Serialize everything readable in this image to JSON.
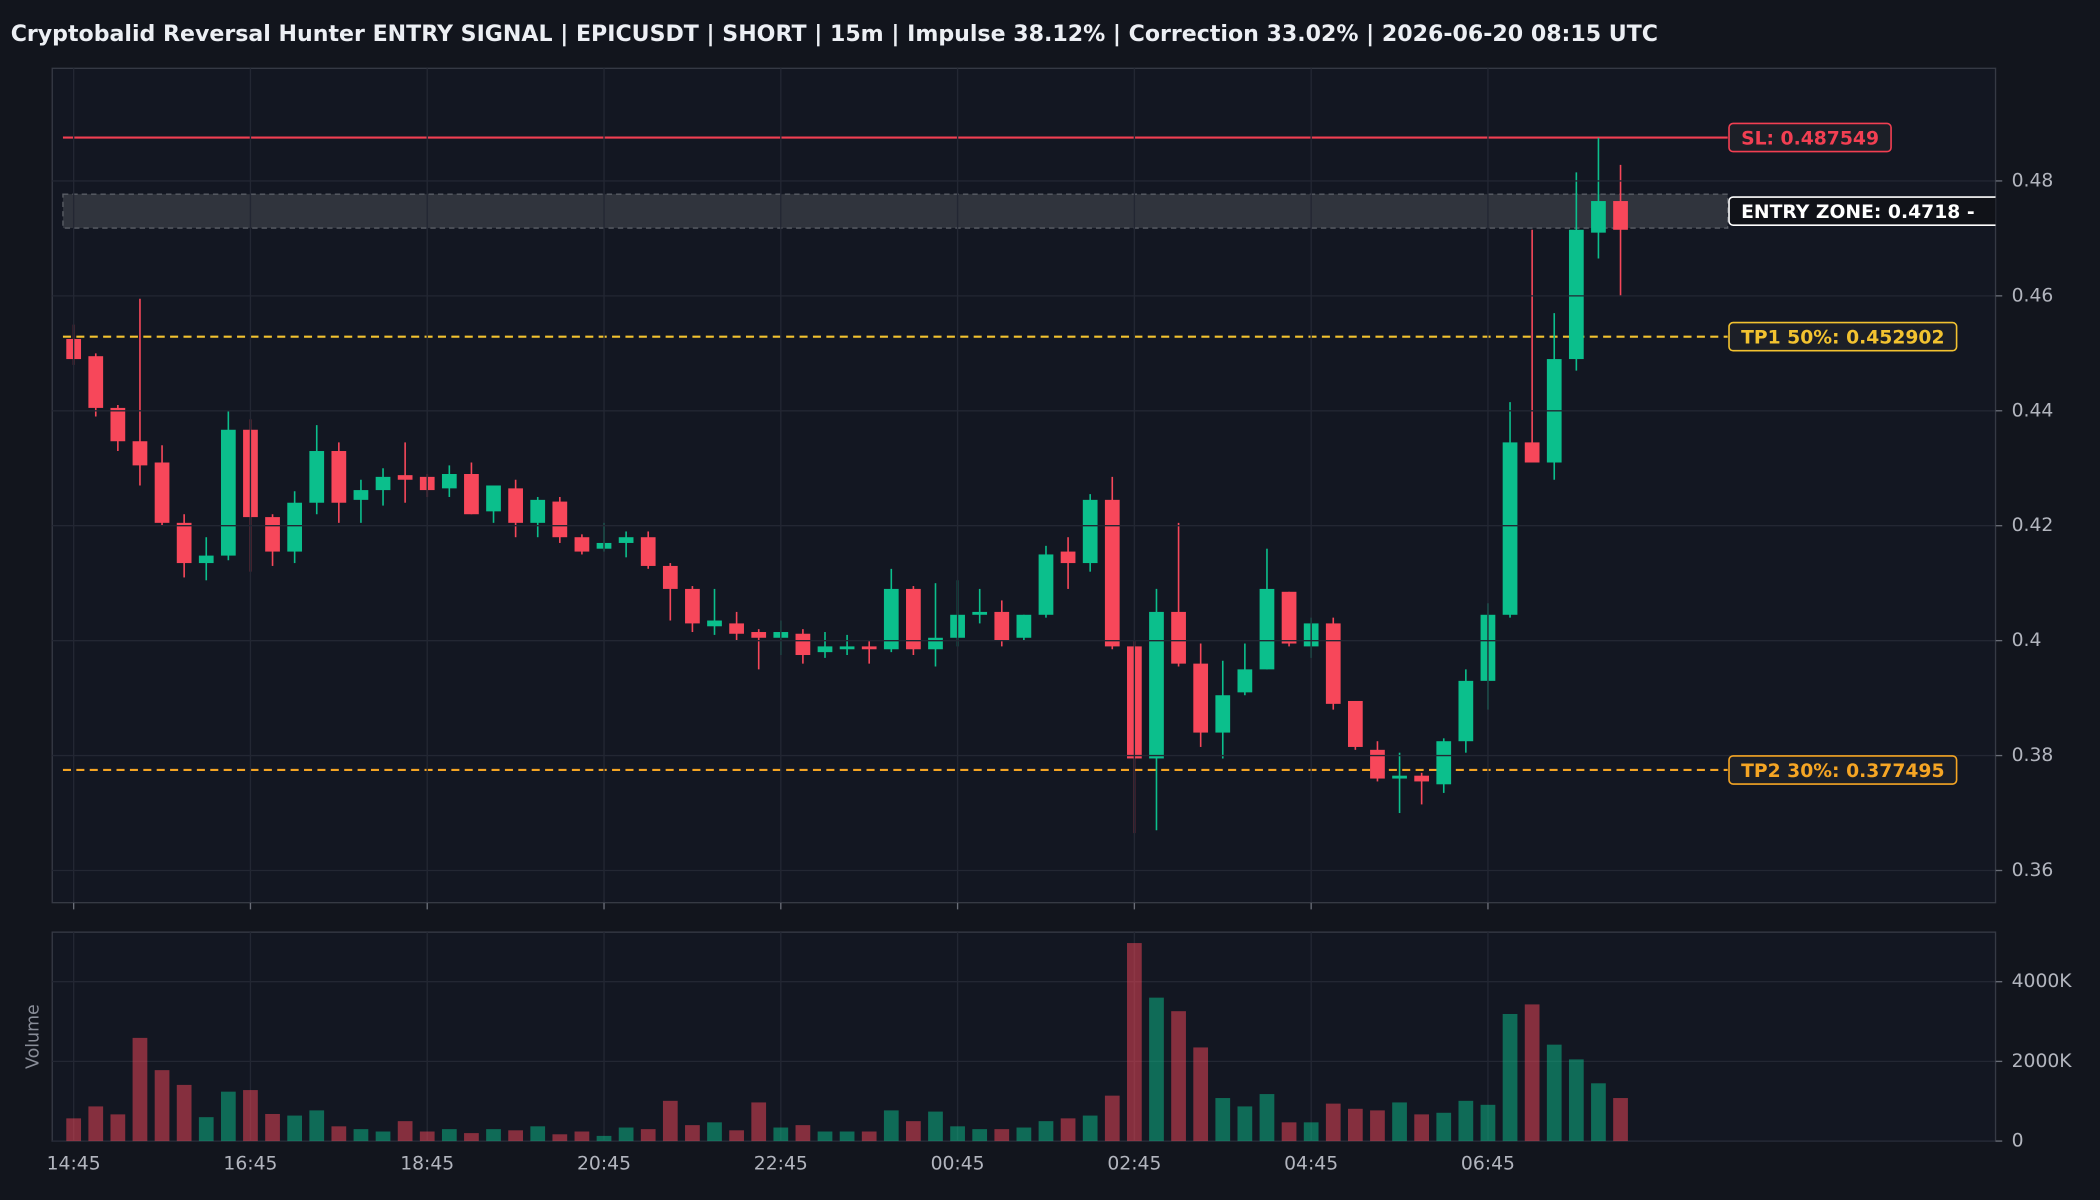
{
  "chart_data": {
    "type": "candlestick",
    "title": "Cryptobalid Reversal Hunter ENTRY SIGNAL | EPICUSDT | SHORT | 15m | Impulse 38.12% | Correction 33.02% | 2026-06-20 08:15 UTC",
    "categories": [
      "14:45",
      null,
      null,
      null,
      null,
      null,
      null,
      null,
      "16:45",
      null,
      null,
      null,
      null,
      null,
      null,
      null,
      "18:45",
      null,
      null,
      null,
      null,
      null,
      null,
      null,
      "20:45",
      null,
      null,
      null,
      null,
      null,
      null,
      null,
      "22:45",
      null,
      null,
      null,
      null,
      null,
      null,
      null,
      "00:45",
      null,
      null,
      null,
      null,
      null,
      null,
      null,
      "02:45",
      null,
      null,
      null,
      null,
      null,
      null,
      null,
      "04:45",
      null,
      null,
      null,
      null,
      null,
      null,
      null,
      "06:45",
      null,
      null,
      null,
      null,
      null,
      null
    ],
    "open": [
      0.4525,
      0.4495,
      0.4405,
      0.4347,
      0.431,
      0.4205,
      0.4135,
      0.4148,
      0.4367,
      0.4215,
      0.4155,
      0.424,
      0.433,
      0.4245,
      0.4262,
      0.4288,
      0.4285,
      0.4265,
      0.429,
      0.4225,
      0.4265,
      0.4205,
      0.4242,
      0.418,
      0.416,
      0.417,
      0.418,
      0.413,
      0.409,
      0.4025,
      0.403,
      0.4015,
      0.4005,
      0.4012,
      0.398,
      0.3985,
      0.399,
      0.3985,
      0.409,
      0.3985,
      0.4005,
      0.4045,
      0.405,
      0.4005,
      0.4045,
      0.4155,
      0.4135,
      0.4245,
      0.399,
      0.3795,
      0.405,
      0.396,
      0.384,
      0.391,
      0.395,
      0.4085,
      0.399,
      0.403,
      0.3895,
      0.381,
      0.376,
      0.3765,
      0.375,
      0.3825,
      0.393,
      0.4045,
      0.4345,
      0.431,
      0.449,
      0.471,
      0.4765
    ],
    "high": [
      0.455,
      0.45,
      0.441,
      0.4595,
      0.434,
      0.422,
      0.418,
      0.44,
      0.4385,
      0.422,
      0.426,
      0.4375,
      0.4345,
      0.428,
      0.43,
      0.4345,
      0.429,
      0.4305,
      0.431,
      0.427,
      0.428,
      0.425,
      0.425,
      0.4185,
      0.4205,
      0.419,
      0.419,
      0.4135,
      0.4095,
      0.409,
      0.405,
      0.402,
      0.4035,
      0.402,
      0.4015,
      0.401,
      0.4,
      0.4125,
      0.4095,
      0.41,
      0.4105,
      0.409,
      0.407,
      0.4045,
      0.4165,
      0.418,
      0.4255,
      0.4285,
      0.4,
      0.409,
      0.4205,
      0.3995,
      0.3965,
      0.3995,
      0.416,
      0.4085,
      0.404,
      0.404,
      0.3895,
      0.3825,
      0.3805,
      0.377,
      0.383,
      0.395,
      0.4065,
      0.4415,
      0.4715,
      0.457,
      0.4815,
      0.4875,
      0.4828
    ],
    "low": [
      0.448,
      0.439,
      0.433,
      0.427,
      0.42,
      0.411,
      0.4105,
      0.414,
      0.412,
      0.413,
      0.4135,
      0.422,
      0.4205,
      0.4205,
      0.4235,
      0.424,
      0.425,
      0.425,
      0.422,
      0.4205,
      0.418,
      0.418,
      0.417,
      0.415,
      0.4155,
      0.4145,
      0.4125,
      0.4035,
      0.4015,
      0.401,
      0.4,
      0.395,
      0.3975,
      0.396,
      0.397,
      0.3975,
      0.396,
      0.398,
      0.3975,
      0.3955,
      0.399,
      0.403,
      0.399,
      0.4,
      0.404,
      0.409,
      0.412,
      0.3985,
      0.3665,
      0.367,
      0.3955,
      0.3815,
      0.3795,
      0.3905,
      0.395,
      0.399,
      0.397,
      0.388,
      0.381,
      0.3755,
      0.37,
      0.3715,
      0.3735,
      0.3805,
      0.388,
      0.404,
      0.431,
      0.428,
      0.447,
      0.4665,
      0.46
    ],
    "close": [
      0.449,
      0.4405,
      0.4347,
      0.4305,
      0.4205,
      0.4135,
      0.4148,
      0.4367,
      0.4215,
      0.4155,
      0.424,
      0.433,
      0.424,
      0.4262,
      0.4285,
      0.428,
      0.4262,
      0.429,
      0.422,
      0.427,
      0.4205,
      0.4245,
      0.418,
      0.4155,
      0.417,
      0.418,
      0.413,
      0.409,
      0.403,
      0.4035,
      0.4012,
      0.4005,
      0.4015,
      0.3975,
      0.399,
      0.399,
      0.3985,
      0.409,
      0.3985,
      0.4005,
      0.4045,
      0.405,
      0.4,
      0.4045,
      0.415,
      0.4135,
      0.4245,
      0.399,
      0.3795,
      0.405,
      0.396,
      0.384,
      0.3905,
      0.395,
      0.409,
      0.3995,
      0.403,
      0.389,
      0.3815,
      0.376,
      0.3765,
      0.3755,
      0.3825,
      0.393,
      0.4045,
      0.4345,
      0.431,
      0.449,
      0.4715,
      0.4765,
      0.4715
    ],
    "volume": [
      570000,
      870000,
      670000,
      2590000,
      1780000,
      1410000,
      600000,
      1240000,
      1280000,
      680000,
      640000,
      770000,
      370000,
      300000,
      240000,
      500000,
      240000,
      300000,
      200000,
      300000,
      270000,
      370000,
      170000,
      240000,
      130000,
      340000,
      300000,
      1010000,
      400000,
      470000,
      270000,
      970000,
      340000,
      400000,
      240000,
      240000,
      240000,
      770000,
      500000,
      740000,
      370000,
      300000,
      300000,
      340000,
      500000,
      570000,
      640000,
      1140000,
      4970000,
      3600000,
      3260000,
      2350000,
      1080000,
      870000,
      1180000,
      470000,
      470000,
      940000,
      810000,
      770000,
      970000,
      670000,
      710000,
      1010000,
      910000,
      3190000,
      3430000,
      2420000,
      2050000,
      1450000,
      1080000
    ],
    "up_color": "#0bbf8c",
    "down_color": "#f7475a",
    "ylim": [
      0.3544,
      0.4996
    ],
    "yticks": [
      0.36,
      0.38,
      0.4,
      0.42,
      0.44,
      0.46,
      0.48
    ],
    "y2_label": "Volume",
    "y2lim": [
      0,
      5244000
    ],
    "y2ticks": [
      0,
      {
        "value": 2000000,
        "label": "2000K"
      },
      {
        "value": 4000000,
        "label": "4000K"
      }
    ],
    "grid": true,
    "levels": [
      {
        "value": 0.487549,
        "label": "SL: 0.487549",
        "color": "#f23f52",
        "dashed": false
      },
      {
        "value": 0.452902,
        "label": "TP1 50%: 0.452902",
        "color": "#f2c230",
        "dashed": true
      },
      {
        "value": 0.377495,
        "label": "TP2 30%: 0.377495",
        "color": "#f5a524",
        "dashed": true
      }
    ],
    "entry_zone": {
      "range": [
        0.4718,
        0.4777
      ],
      "label": "ENTRY ZONE: 0.4718 -",
      "color": "#ffffff"
    }
  }
}
